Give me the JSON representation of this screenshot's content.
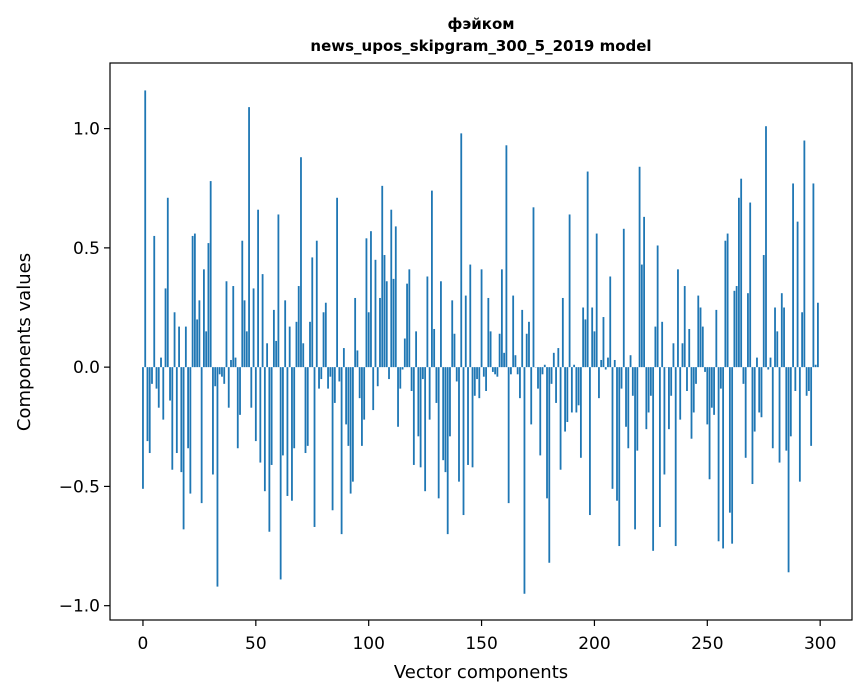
{
  "chart_data": {
    "type": "bar",
    "title": [
      "фэйком",
      "news_upos_skipgram_300_5_2019 model"
    ],
    "xlabel": "Vector components",
    "ylabel": "Components values",
    "xlim": [
      -14.6,
      314.1
    ],
    "ylim": [
      -1.06,
      1.275
    ],
    "xticks": [
      0,
      50,
      100,
      150,
      200,
      250,
      300
    ],
    "xtick_labels": [
      "0",
      "50",
      "100",
      "150",
      "200",
      "250",
      "300"
    ],
    "yticks": [
      1.0,
      0.5,
      0.0,
      -0.5,
      -1.0
    ],
    "ytick_labels": [
      "1.0",
      "0.5",
      "0.0",
      "−0.5",
      "−1.0"
    ],
    "grid": false,
    "bar_color": "#1f77b4",
    "values": [
      -0.51,
      1.16,
      -0.31,
      -0.36,
      -0.07,
      0.55,
      -0.09,
      -0.17,
      0.04,
      -0.22,
      0.33,
      0.71,
      -0.14,
      -0.43,
      0.23,
      -0.36,
      0.17,
      -0.44,
      -0.68,
      0.17,
      -0.34,
      -0.53,
      0.55,
      0.56,
      0.2,
      0.28,
      -0.57,
      0.41,
      0.15,
      0.52,
      0.78,
      -0.45,
      -0.08,
      -0.92,
      -0.03,
      -0.04,
      -0.07,
      0.36,
      -0.17,
      0.03,
      0.34,
      0.04,
      -0.34,
      -0.2,
      0.53,
      0.28,
      0.15,
      1.09,
      -0.17,
      0.33,
      -0.31,
      0.66,
      -0.4,
      0.39,
      -0.52,
      0.1,
      -0.69,
      -0.41,
      0.24,
      0.11,
      0.64,
      -0.89,
      -0.37,
      0.28,
      -0.54,
      0.17,
      -0.56,
      -0.34,
      0.19,
      0.34,
      0.88,
      0.1,
      -0.36,
      -0.33,
      0.19,
      0.46,
      -0.67,
      0.53,
      -0.09,
      -0.05,
      0.23,
      0.27,
      -0.09,
      -0.04,
      -0.6,
      -0.15,
      0.71,
      -0.06,
      -0.7,
      0.08,
      -0.24,
      -0.33,
      -0.53,
      -0.48,
      0.29,
      0.07,
      -0.13,
      -0.33,
      -0.22,
      0.54,
      0.23,
      0.57,
      -0.18,
      0.45,
      -0.08,
      0.29,
      0.76,
      0.47,
      0.36,
      -0.05,
      0.66,
      0.37,
      0.59,
      -0.25,
      -0.09,
      -0.01,
      0.12,
      0.35,
      0.41,
      -0.1,
      -0.41,
      0.15,
      -0.29,
      -0.42,
      -0.05,
      -0.52,
      0.38,
      -0.22,
      0.74,
      0.16,
      -0.15,
      -0.55,
      0.36,
      -0.39,
      -0.44,
      -0.7,
      -0.29,
      0.28,
      0.14,
      -0.06,
      -0.48,
      0.98,
      -0.62,
      0.3,
      -0.41,
      0.43,
      -0.42,
      -0.12,
      -0.05,
      -0.13,
      0.41,
      -0.04,
      -0.1,
      0.29,
      0.15,
      -0.02,
      -0.03,
      -0.04,
      0.14,
      0.41,
      0.06,
      0.93,
      -0.57,
      -0.03,
      0.3,
      0.05,
      -0.03,
      -0.13,
      0.24,
      -0.95,
      0.14,
      0.19,
      -0.24,
      0.67,
      0.0,
      -0.09,
      -0.37,
      -0.03,
      0.01,
      -0.55,
      -0.82,
      -0.07,
      0.06,
      -0.15,
      0.08,
      -0.43,
      0.29,
      -0.27,
      -0.23,
      0.64,
      -0.19,
      0.01,
      -0.19,
      -0.16,
      -0.38,
      0.25,
      0.2,
      0.82,
      -0.62,
      0.25,
      0.15,
      0.56,
      -0.13,
      0.03,
      0.21,
      -0.01,
      0.04,
      0.38,
      -0.51,
      0.03,
      -0.56,
      -0.75,
      -0.09,
      0.58,
      -0.25,
      -0.34,
      0.05,
      -0.12,
      -0.68,
      -0.35,
      0.84,
      0.43,
      0.63,
      -0.26,
      -0.19,
      -0.12,
      -0.77,
      0.17,
      0.51,
      -0.67,
      0.19,
      -0.45,
      0.0,
      -0.26,
      -0.12,
      0.1,
      -0.75,
      0.41,
      -0.22,
      0.1,
      0.34,
      -0.1,
      0.16,
      -0.3,
      -0.19,
      -0.07,
      0.3,
      0.25,
      0.17,
      -0.02,
      -0.24,
      -0.47,
      -0.17,
      -0.2,
      0.24,
      -0.73,
      -0.09,
      -0.76,
      0.53,
      0.56,
      -0.61,
      -0.74,
      0.32,
      0.34,
      0.71,
      0.79,
      -0.07,
      -0.38,
      0.31,
      0.69,
      -0.49,
      -0.27,
      0.04,
      -0.19,
      -0.21,
      0.47,
      1.01,
      -0.01,
      0.04,
      -0.34,
      0.25,
      0.15,
      -0.4,
      0.31,
      0.25,
      -0.35,
      -0.86,
      -0.29,
      0.77,
      -0.1,
      0.61,
      -0.48,
      0.23,
      0.95,
      -0.12,
      -0.1,
      -0.33,
      0.77,
      0.01,
      0.27
    ]
  }
}
